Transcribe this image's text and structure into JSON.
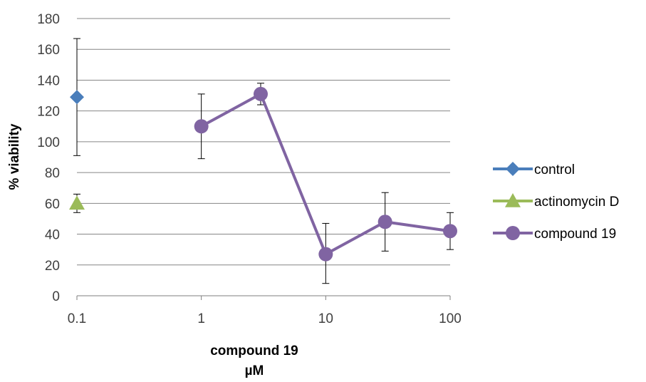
{
  "chart_data": {
    "type": "scatter",
    "x_scale": "log",
    "xlim": [
      0.1,
      100
    ],
    "ylim": [
      0,
      180
    ],
    "y_ticks": [
      0,
      20,
      40,
      60,
      80,
      100,
      120,
      140,
      160,
      180
    ],
    "x_ticks": [
      0.1,
      1,
      10,
      100
    ],
    "x_tick_labels": [
      "0.1",
      "1",
      "10",
      "100"
    ],
    "xlabel_lines": [
      "compound 19",
      "µM"
    ],
    "ylabel": "% viability",
    "grid": "horizontal",
    "legend_position": "right",
    "series": [
      {
        "name": "control",
        "color": "#4a7ebb",
        "marker": "diamond",
        "line": false,
        "points": [
          {
            "x": 0.1,
            "y": 129,
            "err_low": 91,
            "err_high": 167
          }
        ]
      },
      {
        "name": "actinomycin D",
        "color": "#9bbb59",
        "marker": "triangle",
        "line": false,
        "points": [
          {
            "x": 0.1,
            "y": 60,
            "err_low": 54,
            "err_high": 66
          }
        ]
      },
      {
        "name": "compound 19",
        "color": "#8064a2",
        "marker": "circle",
        "line": true,
        "points": [
          {
            "x": 1,
            "y": 110,
            "err_low": 89,
            "err_high": 131
          },
          {
            "x": 3,
            "y": 131,
            "err_low": 124,
            "err_high": 138
          },
          {
            "x": 10,
            "y": 27,
            "err_low": 8,
            "err_high": 47
          },
          {
            "x": 30,
            "y": 48,
            "err_low": 29,
            "err_high": 67
          },
          {
            "x": 100,
            "y": 42,
            "err_low": 30,
            "err_high": 54
          }
        ]
      }
    ]
  }
}
